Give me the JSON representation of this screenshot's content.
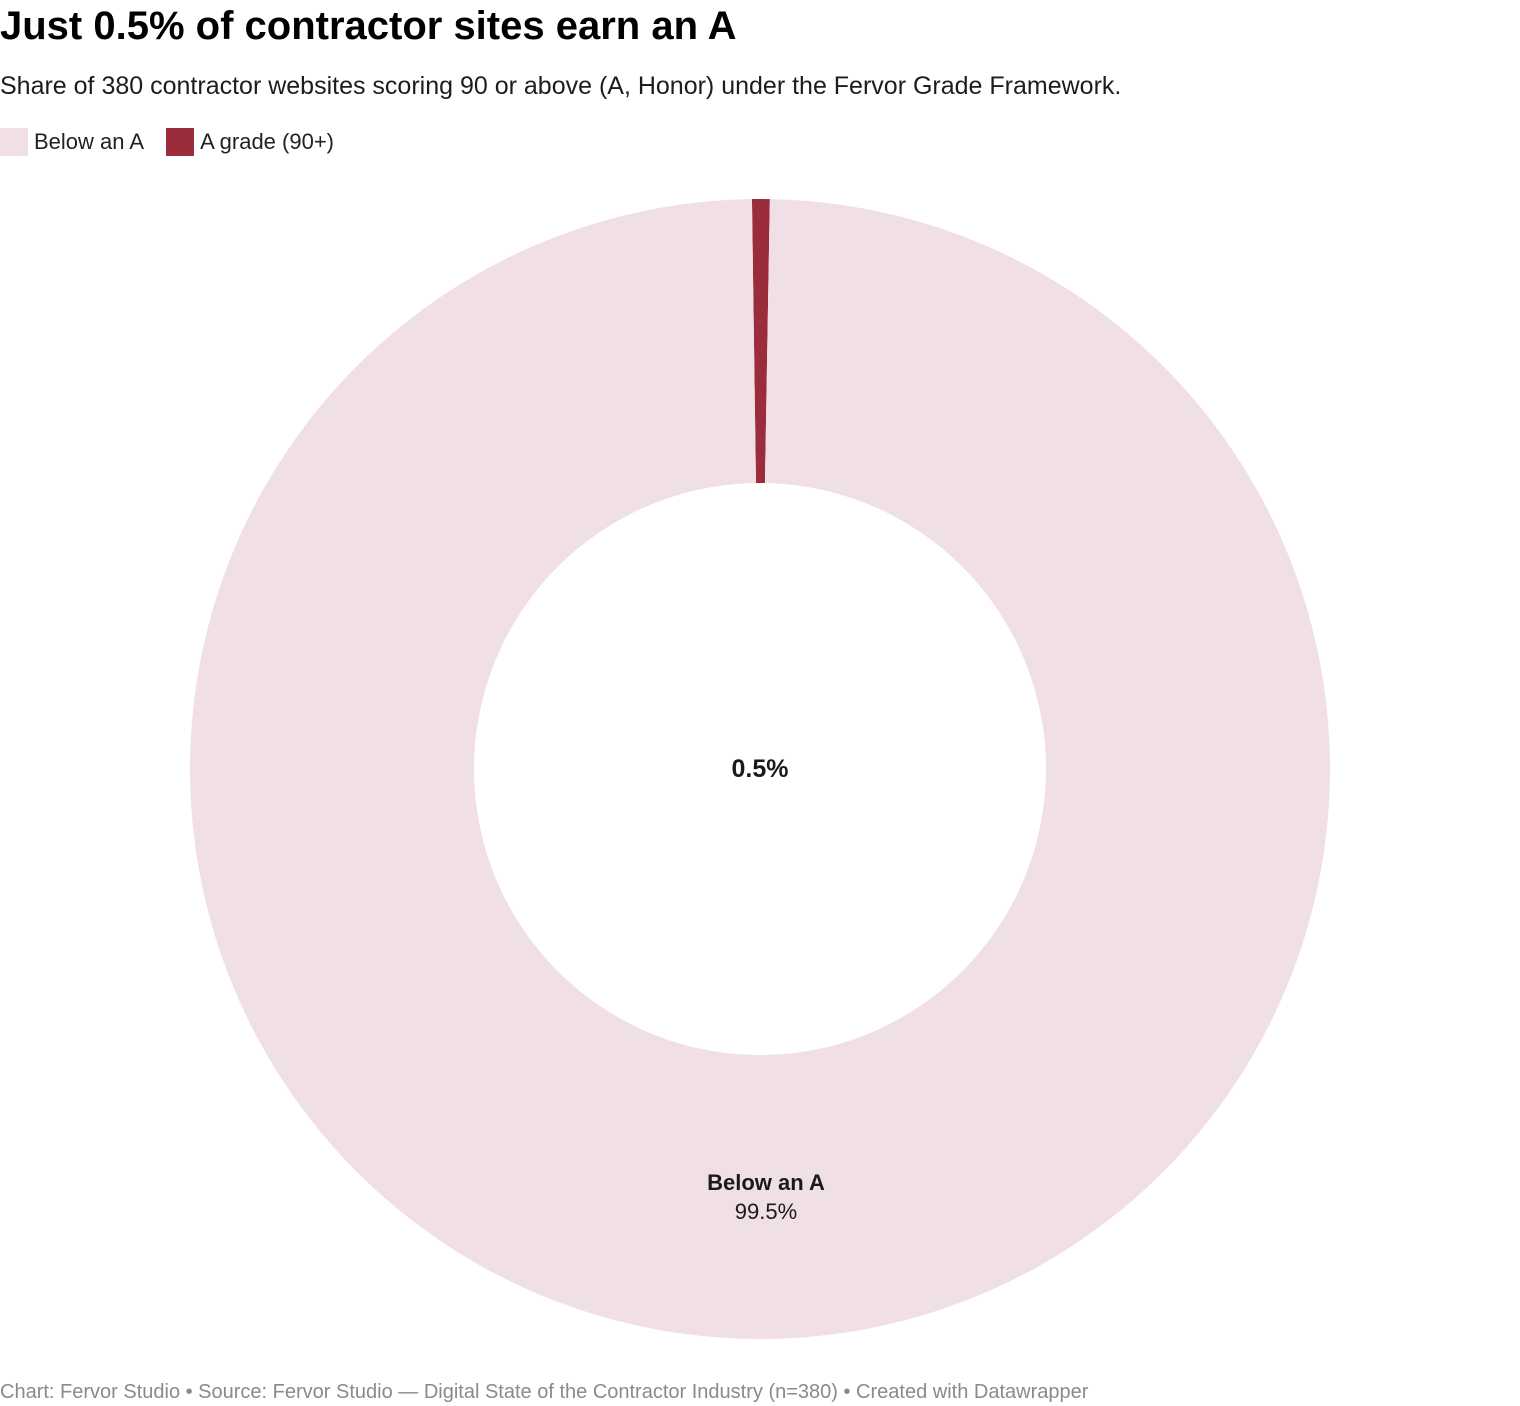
{
  "header": {
    "title": "Just 0.5% of contractor sites earn an A",
    "subtitle": "Share of 380 contractor websites scoring 90 or above (A, Honor) under the Fervor Grade Framework."
  },
  "footer": {
    "text": "Chart: Fervor Studio • Source: Fervor Studio — Digital State of the Contractor Industry (n=380) • Created with Datawrapper"
  },
  "chart_data": {
    "type": "pie",
    "donut": true,
    "title": "Just 0.5% of contractor sites earn an A",
    "subtitle": "Share of 380 contractor websites scoring 90 or above (A, Honor) under the Fervor Grade Framework.",
    "legend_position": "top-left",
    "center_label": "0.5%",
    "slices": [
      {
        "name": "Below an A",
        "value": 99.5,
        "value_label": "99.5%",
        "color": "#f0e0e6"
      },
      {
        "name": "A grade (90+)",
        "value": 0.5,
        "value_label": "0.5%",
        "color": "#9a2c3c"
      }
    ]
  }
}
